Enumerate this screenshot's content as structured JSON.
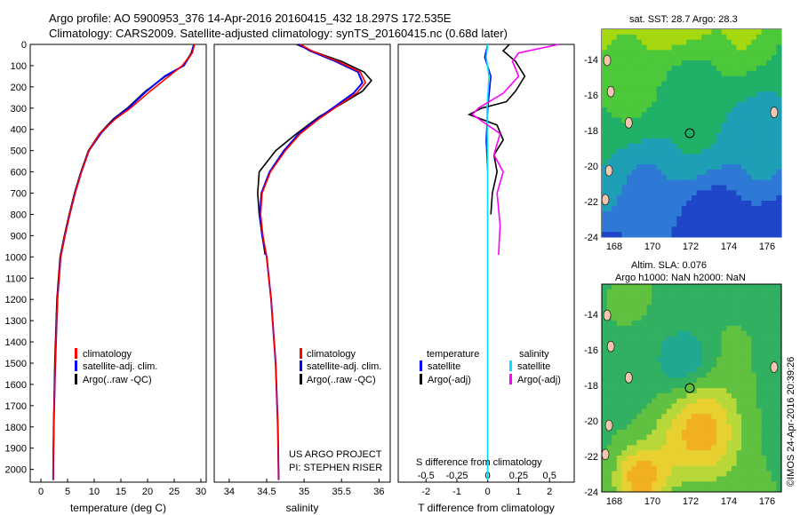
{
  "header": {
    "line1": "Argo profile: AO 5900953_376 14-Apr-2016 20160415_432 18.297S 172.535E",
    "line2": "Climatology: CARS2009. Satellite-adjusted climatology: synTS_20160415.nc (0.68d later)"
  },
  "colors": {
    "climatology": "#ff0000",
    "satellite": "#0000ff",
    "argo": "#000000",
    "s_satellite": "#00e5ff",
    "s_argo": "#ff00ff"
  },
  "chart_data": [
    {
      "id": "temperature",
      "type": "line",
      "xlabel": "temperature (deg C)",
      "xlim": [
        -2,
        31
      ],
      "xticks": [
        0,
        5,
        10,
        15,
        20,
        25,
        30
      ],
      "ylim": [
        0,
        2060
      ],
      "yticks": [
        0,
        100,
        200,
        300,
        400,
        500,
        600,
        700,
        800,
        900,
        1000,
        1100,
        1200,
        1300,
        1400,
        1500,
        1600,
        1700,
        1800,
        1900,
        2000
      ],
      "legend": [
        "climatology",
        "satellite-adj. clim.",
        "Argo(..raw -QC)"
      ],
      "series": [
        {
          "name": "climatology",
          "x": [
            28.8,
            28.4,
            26.5,
            24.0,
            20.5,
            16.8,
            14.0,
            11.0,
            9.0,
            7.6,
            6.4,
            5.4,
            4.5,
            3.7,
            3.1,
            2.7,
            2.4,
            2.3
          ],
          "y": [
            0,
            40,
            100,
            150,
            220,
            300,
            350,
            420,
            500,
            600,
            700,
            800,
            900,
            1000,
            1200,
            1500,
            1800,
            2050
          ]
        },
        {
          "name": "satellite-adj. clim.",
          "x": [
            28.7,
            28.3,
            26.8,
            23.2,
            19.8,
            16.4,
            13.8,
            11.2,
            9.0,
            7.6,
            6.4,
            5.4,
            4.5,
            3.7,
            3.1,
            2.7,
            2.4,
            2.3
          ],
          "y": [
            0,
            40,
            100,
            150,
            220,
            300,
            350,
            420,
            500,
            600,
            700,
            800,
            900,
            1000,
            1200,
            1500,
            1800,
            2050
          ]
        },
        {
          "name": "Argo(..raw -QC)",
          "x": [
            28.6,
            28.2,
            26.7,
            23.4,
            19.6,
            16.2,
            13.6,
            11.0,
            8.9,
            7.5,
            6.3,
            5.3,
            4.4,
            3.6,
            3.0,
            2.6,
            2.4,
            2.3
          ],
          "y": [
            5,
            40,
            100,
            150,
            220,
            300,
            350,
            420,
            500,
            600,
            700,
            800,
            900,
            1000,
            1200,
            1500,
            1800,
            2050
          ]
        }
      ]
    },
    {
      "id": "salinity",
      "type": "line",
      "xlabel": "salinity",
      "xlim": [
        33.8,
        36.15
      ],
      "xticks": [
        34,
        34.5,
        35,
        35.5,
        36
      ],
      "ylim": [
        0,
        2060
      ],
      "legend": [
        "climatology",
        "satellite-adj. clim.",
        "Argo(..raw -QC)"
      ],
      "series": [
        {
          "name": "climatology",
          "x": [
            34.95,
            35.1,
            35.45,
            35.75,
            35.82,
            35.7,
            35.45,
            35.2,
            34.95,
            34.75,
            34.55,
            34.44,
            34.42,
            34.45,
            34.5,
            34.56,
            34.62,
            34.65,
            34.66
          ],
          "y": [
            0,
            30,
            80,
            130,
            180,
            230,
            290,
            350,
            420,
            500,
            600,
            700,
            800,
            900,
            1000,
            1200,
            1500,
            1800,
            2050
          ]
        },
        {
          "name": "satellite-adj. clim.",
          "x": [
            34.93,
            35.08,
            35.42,
            35.72,
            35.78,
            35.66,
            35.42,
            35.18,
            34.93,
            34.73,
            34.54,
            34.43,
            34.41,
            34.44,
            34.5,
            34.56,
            34.62,
            34.65,
            34.66
          ],
          "y": [
            0,
            30,
            80,
            130,
            180,
            230,
            290,
            350,
            420,
            500,
            600,
            700,
            800,
            900,
            1000,
            1200,
            1500,
            1800,
            2050
          ]
        },
        {
          "name": "Argo(..raw -QC)",
          "x": [
            34.9,
            35.1,
            35.5,
            35.8,
            35.9,
            35.78,
            35.5,
            35.2,
            34.9,
            34.62,
            34.4,
            34.38,
            34.4,
            34.44,
            34.48
          ],
          "y": [
            0,
            30,
            80,
            130,
            170,
            220,
            280,
            340,
            420,
            500,
            600,
            700,
            800,
            900,
            990
          ]
        }
      ]
    },
    {
      "id": "difference",
      "type": "line",
      "xlabel": "T difference from climatology",
      "x2label": "S difference from climatology",
      "xlim": [
        -2.9,
        2.8
      ],
      "xticks": [
        -2,
        -1,
        0,
        1,
        2
      ],
      "x2ticks": [
        "-0.5",
        "-0.25",
        "0",
        "0.25",
        "0.5"
      ],
      "ylim": [
        0,
        2060
      ],
      "legend_titles": [
        "temperature",
        "salinity"
      ],
      "legend": [
        "satellite",
        "Argo(-adj)",
        "satellite",
        "Argo(-adj)"
      ],
      "series": [
        {
          "name": "T satellite",
          "x": [
            0.0,
            -0.1,
            0.1,
            0.0,
            -0.05,
            0.0,
            0.0,
            0.0,
            0.0
          ],
          "y": [
            0,
            60,
            150,
            300,
            450,
            600,
            900,
            1500,
            2050
          ]
        },
        {
          "name": "T Argo(-adj)",
          "x": [
            0.7,
            0.5,
            0.9,
            1.2,
            0.9,
            0.6,
            -0.2,
            -0.6,
            0.3,
            0.5,
            0.2,
            0.3,
            0.15,
            0.1
          ],
          "y": [
            0,
            30,
            80,
            150,
            220,
            270,
            300,
            330,
            380,
            450,
            520,
            600,
            700,
            800
          ]
        },
        {
          "name": "S satellite",
          "x": [
            0.0,
            -0.05,
            0.04,
            -0.02,
            0.0,
            0.0,
            0.0,
            0.0
          ],
          "y": [
            0,
            60,
            150,
            300,
            600,
            900,
            1500,
            2050
          ]
        },
        {
          "name": "S Argo(-adj)",
          "x": [
            2.3,
            1.0,
            0.8,
            1.0,
            0.5,
            -0.3,
            -0.5,
            0.4,
            0.2,
            0.5,
            0.3,
            0.4,
            0.35
          ],
          "y": [
            0,
            40,
            80,
            150,
            230,
            300,
            330,
            420,
            520,
            600,
            700,
            850,
            990
          ]
        }
      ]
    }
  ],
  "panel2_label1": "US ARGO PROJECT",
  "panel2_label2": "PI: STEPHEN RISER",
  "sst_map": {
    "title": "sat. SST: 28.7 Argo: 28.3",
    "yticks": [
      "-14",
      "-16",
      "-18",
      "-20",
      "-22",
      "-24"
    ],
    "xticks": [
      "168",
      "170",
      "172",
      "174",
      "176"
    ]
  },
  "sla_map": {
    "title1": "Altim. SLA: 0.076",
    "title2": "Argo h1000: NaN h2000: NaN",
    "yticks": [
      "-14",
      "-16",
      "-18",
      "-20",
      "-22",
      "-24"
    ],
    "xticks": [
      "168",
      "170",
      "172",
      "174",
      "176"
    ]
  },
  "credit": "©IMOS 24-Apr-2016 20:39:26"
}
